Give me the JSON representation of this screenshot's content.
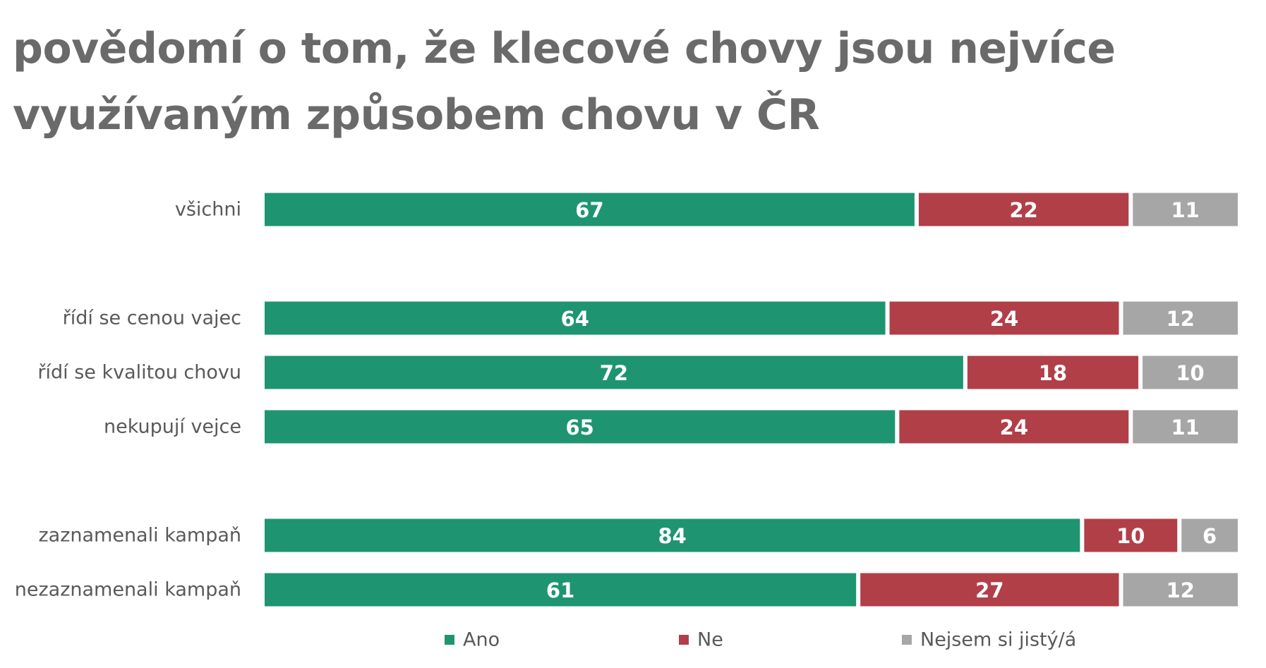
{
  "title_line1": "povědomí o tom, že klecové chovy jsou nejvíce",
  "title_line2": "využívaným způsobem chovu v ČR",
  "chart_data": {
    "type": "bar",
    "orientation": "horizontal",
    "stacked": "percent",
    "categories": [
      "všichni",
      "řídí se cenou vajec",
      "řídí se kvalitou chovu",
      "nekupují vejce",
      "zaznamenali kampaň",
      "nezaznamenali kampaň"
    ],
    "series": [
      {
        "name": "Ano",
        "color": "#1e9570",
        "values": [
          67,
          64,
          72,
          65,
          84,
          61
        ]
      },
      {
        "name": "Ne",
        "color": "#b13f48",
        "values": [
          22,
          24,
          18,
          24,
          10,
          27
        ]
      },
      {
        "name": "Nejsem si jistý/á",
        "color": "#a6a6a6",
        "values": [
          11,
          12,
          10,
          11,
          6,
          12
        ]
      }
    ],
    "xlim": [
      0,
      100
    ],
    "grid": false,
    "data_labels": true,
    "legend_position": "bottom"
  }
}
